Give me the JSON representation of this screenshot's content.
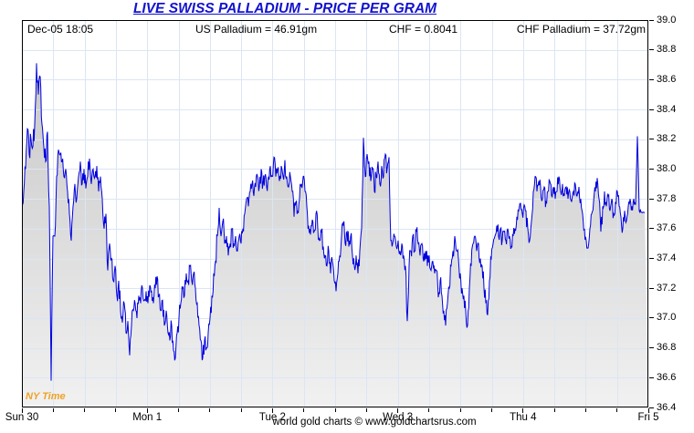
{
  "title": "LIVE SWISS PALLADIUM - PRICE PER GRAM",
  "header": {
    "timestamp": "Dec-05  18:05",
    "us_palladium": "US Palladium = 46.91gm",
    "chf_rate": "CHF = 0.8041",
    "chf_palladium": "CHF Palladium = 37.72gm"
  },
  "ny_time_label": "NY Time",
  "footer": "world gold charts © www.goldchartsrus.com",
  "colors": {
    "title_blue": "#1212cf",
    "line_blue": "#0000dd",
    "grid_blue": "#dbe6f3",
    "ny_time_orange": "#efa226",
    "fill_top": "#c8c8c8",
    "fill_bottom": "#f1f1f1",
    "axis_black": "#000000"
  },
  "chart_data": {
    "type": "area",
    "title": "LIVE SWISS PALLADIUM - PRICE PER GRAM",
    "ylabel": "",
    "xlabel": "",
    "ylim": [
      36.4,
      39.0
    ],
    "y_tick_labels": [
      "39.0",
      "38.8",
      "38.6",
      "38.4",
      "38.2",
      "38.0",
      "37.8",
      "37.6",
      "37.4",
      "37.2",
      "37.0",
      "36.8",
      "36.6",
      "36.4"
    ],
    "x_labels": [
      "Sun 30",
      "Mon 1",
      "Tue 2",
      "Wed 3",
      "Thu 4",
      "Fri 5"
    ],
    "x_minor_divisions_per_day": 4,
    "grid": true,
    "legend": "none",
    "last_price_chf_per_gram": 37.72,
    "step_minutes": 21,
    "series": [
      {
        "name": "CHF Palladium price per gram",
        "values": [
          37.7,
          37.85,
          38.0,
          38.27,
          38.1,
          38.2,
          38.15,
          38.3,
          38.71,
          38.5,
          38.62,
          38.3,
          38.15,
          38.05,
          38.25,
          37.75,
          36.58,
          37.55,
          37.55,
          37.95,
          38.13,
          38.1,
          38.05,
          37.95,
          38.0,
          37.85,
          37.7,
          37.52,
          37.75,
          37.9,
          37.8,
          37.95,
          38.05,
          37.9,
          38.0,
          37.87,
          37.95,
          38.07,
          37.9,
          38.0,
          37.95,
          38.02,
          37.85,
          37.95,
          37.8,
          37.6,
          37.7,
          37.32,
          37.5,
          37.4,
          37.25,
          37.35,
          37.15,
          37.25,
          37.05,
          36.97,
          37.1,
          36.9,
          36.98,
          36.75,
          36.95,
          37.05,
          37.1,
          37.0,
          37.15,
          37.1,
          37.2,
          37.12,
          37.18,
          37.1,
          37.22,
          37.18,
          37.1,
          37.2,
          37.28,
          37.15,
          37.05,
          37.12,
          36.95,
          37.05,
          36.9,
          36.85,
          36.95,
          36.78,
          36.73,
          36.9,
          37.0,
          37.1,
          37.2,
          37.15,
          37.3,
          37.25,
          37.35,
          37.25,
          37.3,
          37.2,
          37.1,
          36.95,
          36.85,
          36.73,
          36.85,
          36.8,
          36.9,
          37.0,
          37.15,
          37.3,
          37.38,
          37.55,
          37.74,
          37.55,
          37.65,
          37.5,
          37.55,
          37.42,
          37.5,
          37.6,
          37.5,
          37.55,
          37.45,
          37.55,
          37.5,
          37.6,
          37.7,
          37.8,
          37.75,
          37.85,
          37.9,
          37.82,
          37.88,
          37.95,
          37.88,
          38.0,
          37.9,
          37.95,
          37.88,
          37.95,
          38.02,
          37.95,
          38.08,
          37.95,
          38.0,
          37.92,
          38.02,
          37.95,
          38.06,
          37.95,
          37.88,
          37.95,
          37.85,
          37.68,
          37.78,
          37.72,
          37.8,
          37.9,
          37.95,
          37.85,
          37.75,
          37.62,
          37.56,
          37.66,
          37.58,
          37.7,
          37.6,
          37.52,
          37.58,
          37.48,
          37.42,
          37.35,
          37.45,
          37.3,
          37.38,
          37.25,
          37.18,
          37.3,
          37.42,
          37.55,
          37.62,
          37.5,
          37.58,
          37.48,
          37.55,
          37.42,
          37.35,
          37.42,
          37.3,
          37.45,
          37.6,
          38.21,
          37.95,
          38.1,
          38.05,
          37.92,
          38.0,
          37.85,
          37.95,
          38.05,
          37.9,
          38.02,
          37.95,
          38.1,
          38.0,
          38.08,
          37.52,
          37.5,
          37.55,
          37.48,
          37.52,
          37.45,
          37.5,
          37.42,
          37.35,
          36.98,
          37.35,
          37.45,
          37.55,
          37.45,
          37.58,
          37.5,
          37.42,
          37.5,
          37.38,
          37.45,
          37.35,
          37.42,
          37.32,
          37.38,
          37.3,
          37.32,
          37.14,
          37.25,
          37.15,
          37.05,
          36.95,
          37.1,
          37.2,
          37.35,
          37.45,
          37.55,
          37.45,
          37.4,
          37.3,
          37.2,
          37.15,
          37.05,
          36.95,
          37.2,
          37.35,
          37.5,
          37.55,
          37.45,
          37.5,
          37.4,
          37.35,
          37.2,
          37.1,
          37.02,
          37.25,
          37.4,
          37.5,
          37.55,
          37.62,
          37.55,
          37.6,
          37.52,
          37.58,
          37.52,
          37.6,
          37.55,
          37.48,
          37.55,
          37.6,
          37.68,
          37.72,
          37.77,
          37.7,
          37.76,
          37.72,
          37.6,
          37.52,
          37.65,
          37.85,
          37.95,
          37.85,
          37.92,
          37.88,
          37.8,
          37.88,
          37.78,
          37.85,
          37.92,
          37.82,
          37.88,
          37.8,
          37.85,
          37.95,
          37.85,
          37.9,
          37.82,
          37.88,
          37.8,
          37.85,
          37.78,
          37.85,
          37.9,
          37.82,
          37.88,
          37.8,
          37.7,
          37.6,
          37.52,
          37.47,
          37.6,
          37.7,
          37.78,
          37.85,
          37.94,
          37.8,
          37.58,
          37.75,
          37.85,
          37.75,
          37.82,
          37.72,
          37.8,
          37.7,
          37.78,
          37.85,
          37.75,
          37.68,
          37.6,
          37.72,
          37.65,
          37.75,
          37.8,
          37.75,
          37.8,
          37.76,
          38.22,
          37.72,
          37.71,
          37.71,
          37.71
        ]
      }
    ]
  }
}
